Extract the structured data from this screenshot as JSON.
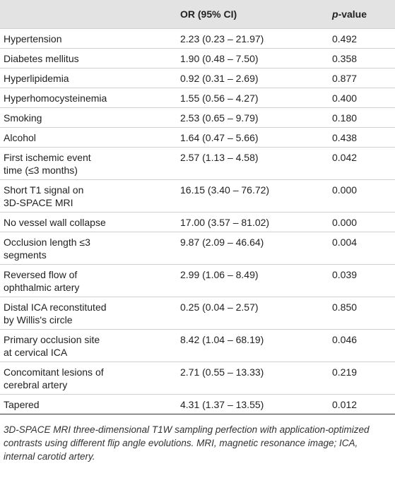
{
  "table": {
    "header": {
      "or": "OR (95% CI)",
      "p": "p-value"
    },
    "rows": [
      {
        "label": [
          "Hypertension"
        ],
        "or": "2.23 (0.23 – 21.97)",
        "p": "0.492"
      },
      {
        "label": [
          "Diabetes mellitus"
        ],
        "or": "1.90 (0.48 – 7.50)",
        "p": "0.358"
      },
      {
        "label": [
          "Hyperlipidemia"
        ],
        "or": "0.92 (0.31 – 2.69)",
        "p": "0.877"
      },
      {
        "label": [
          "Hyperhomocysteinemia"
        ],
        "or": "1.55 (0.56 – 4.27)",
        "p": "0.400"
      },
      {
        "label": [
          "Smoking"
        ],
        "or": "2.53 (0.65 – 9.79)",
        "p": "0.180"
      },
      {
        "label": [
          "Alcohol"
        ],
        "or": "1.64 (0.47 – 5.66)",
        "p": "0.438"
      },
      {
        "label": [
          "First ischemic event",
          "time (≤3 months)"
        ],
        "or": "2.57 (1.13 – 4.58)",
        "p": "0.042"
      },
      {
        "label": [
          "Short T1 signal on",
          "3D-SPACE MRI"
        ],
        "or": "16.15 (3.40 – 76.72)",
        "p": "0.000"
      },
      {
        "label": [
          "No vessel wall collapse"
        ],
        "or": "17.00 (3.57 – 81.02)",
        "p": "0.000"
      },
      {
        "label": [
          "Occlusion length ≤3",
          "segments"
        ],
        "or": "9.87 (2.09 – 46.64)",
        "p": "0.004"
      },
      {
        "label": [
          "Reversed flow of",
          "ophthalmic artery"
        ],
        "or": "2.99 (1.06 – 8.49)",
        "p": "0.039"
      },
      {
        "label": [
          "Distal ICA reconstituted",
          "by Willis's circle"
        ],
        "or": "0.25 (0.04 – 2.57)",
        "p": "0.850"
      },
      {
        "label": [
          "Primary occlusion site",
          "at cervical ICA"
        ],
        "or": "8.42 (1.04 – 68.19)",
        "p": "0.046"
      },
      {
        "label": [
          "Concomitant lesions of",
          "cerebral artery"
        ],
        "or": "2.71 (0.55 – 13.33)",
        "p": "0.219"
      },
      {
        "label": [
          "Tapered"
        ],
        "or": "4.31 (1.37 – 13.55)",
        "p": "0.012"
      }
    ],
    "footnote": "3D-SPACE MRI three-dimensional T1W sampling perfection with application-optimized contrasts using different flip angle evolutions. MRI, magnetic resonance image; ICA, internal carotid artery."
  }
}
